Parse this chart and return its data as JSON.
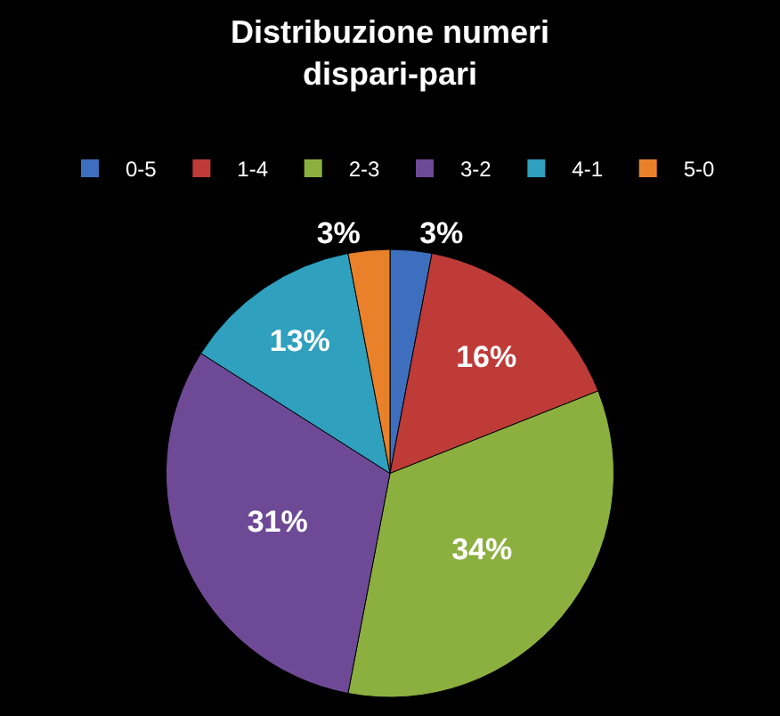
{
  "chart_data": {
    "type": "pie",
    "title": "Distribuzione numeri dispari-pari",
    "categories": [
      "0-5",
      "1-4",
      "2-3",
      "3-2",
      "4-1",
      "5-0"
    ],
    "values": [
      3,
      16,
      34,
      31,
      13,
      3
    ],
    "colors": [
      "#3d6fbe",
      "#be3b38",
      "#8cb03f",
      "#6e4a96",
      "#2fa0be",
      "#e9812a"
    ],
    "value_labels": [
      "3%",
      "16%",
      "34%",
      "31%",
      "13%",
      "3%"
    ],
    "legend": "top"
  }
}
